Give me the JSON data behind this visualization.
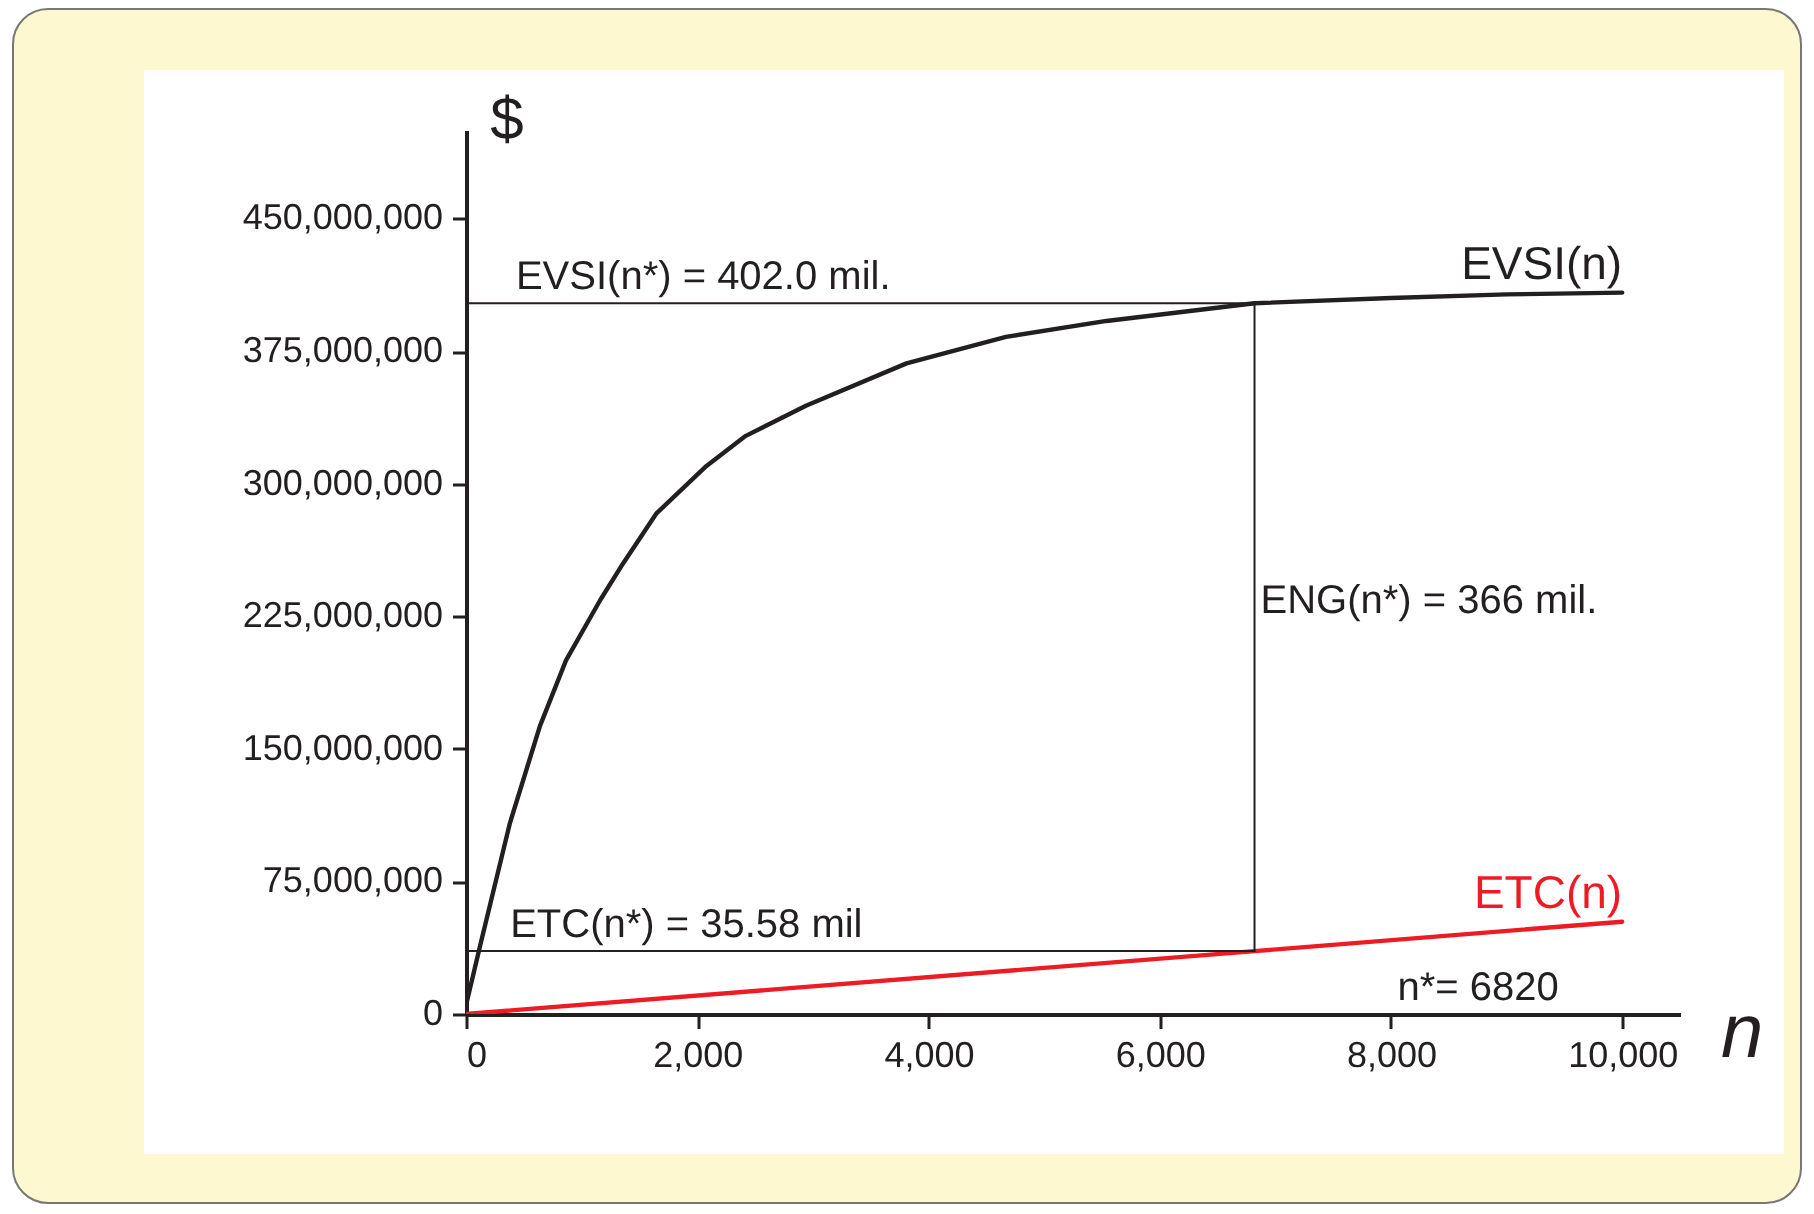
{
  "chart_data": {
    "type": "line",
    "xlabel": "n",
    "ylabel": "$",
    "xlim": [
      0,
      10500
    ],
    "ylim": [
      0,
      500000000
    ],
    "xticks": [
      0,
      {
        "value": 2000,
        "label": "2,000"
      },
      {
        "value": 4000,
        "label": "4,000"
      },
      {
        "value": 6000,
        "label": "6,000"
      },
      {
        "value": 8000,
        "label": "8,000"
      },
      {
        "value": 10000,
        "label": "10,000"
      }
    ],
    "yticks": [
      0,
      {
        "value": 75000000,
        "label": "75,000,000"
      },
      {
        "value": 150000000,
        "label": "150,000,000"
      },
      {
        "value": 225000000,
        "label": "225,000,000"
      },
      {
        "value": 300000000,
        "label": "300,000,000"
      },
      {
        "value": 375000000,
        "label": "375,000,000"
      },
      {
        "value": 450000000,
        "label": "450,000,000"
      }
    ],
    "grid": false,
    "series": [
      {
        "name": "EVSI(n)",
        "color": "#231f20",
        "x": [
          0,
          120,
          380,
          640,
          865,
          1160,
          1360,
          1645,
          2080,
          2420,
          2940,
          3810,
          4670,
          5540,
          6820,
          8000,
          9000,
          10000
        ],
        "values": [
          5000000,
          38000000,
          108000000,
          163000000,
          200000000,
          234000000,
          255000000,
          283000000,
          310000000,
          327000000,
          344000000,
          368000000,
          383000000,
          392000000,
          402000000,
          405000000,
          407000000,
          408000000
        ]
      },
      {
        "name": "ETC(n)",
        "color": "#ed1c24",
        "x": [
          0,
          6820,
          10000
        ],
        "values": [
          0,
          35580000,
          52200000
        ]
      },
      {
        "color": "#231f20",
        "x": [
          0,
          6820
        ],
        "values": [
          402000000,
          402000000
        ]
      },
      {
        "color": "#231f20",
        "x": [
          0,
          6820
        ],
        "values": [
          35580000,
          35580000
        ]
      },
      {
        "color": "#231f20",
        "x": [
          6820,
          6820
        ],
        "values": [
          35580000,
          402000000
        ]
      }
    ],
    "annotations": [
      {
        "text": "EVSI(n*) = 402.0 mil.",
        "x": 380,
        "y": 402000000
      },
      {
        "text": "ENG(n*) = 366 mil.",
        "x": 6820,
        "y": 218790000
      },
      {
        "text": "ETC(n*) = 35.58 mil",
        "x": 330,
        "y": 35580000
      },
      "n*= 6820"
    ]
  }
}
